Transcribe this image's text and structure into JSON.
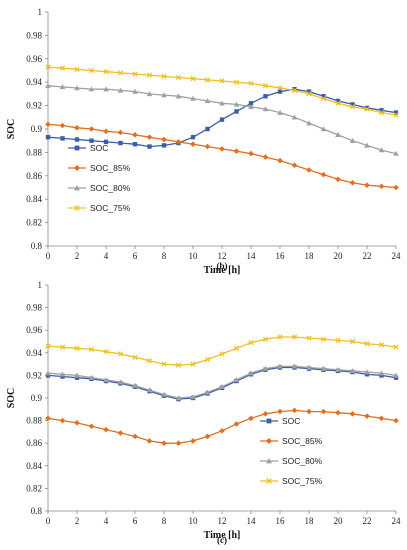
{
  "chart_data": [
    {
      "type": "line",
      "caption": "(b)",
      "xlabel": "Time [h]",
      "ylabel": "SOC",
      "xlim": [
        0,
        24
      ],
      "ylim": [
        0.8,
        1.0
      ],
      "xticks": [
        "0",
        "2",
        "4",
        "6",
        "8",
        "10",
        "12",
        "14",
        "16",
        "18",
        "20",
        "22",
        "24"
      ],
      "yticks": [
        "0.8",
        "0.82",
        "0.84",
        "0.86",
        "0.88",
        "0.9",
        "0.92",
        "0.94",
        "0.96",
        "0.98",
        "1"
      ],
      "grid": false,
      "legend": "left-bottom",
      "x": [
        0,
        1,
        2,
        3,
        4,
        5,
        6,
        7,
        8,
        9,
        10,
        11,
        12,
        13,
        14,
        15,
        16,
        17,
        18,
        19,
        20,
        21,
        22,
        23,
        24
      ],
      "series": [
        {
          "name": "SOC",
          "color": "#3a5fa8",
          "marker": "square",
          "values": [
            0.893,
            0.892,
            0.891,
            0.89,
            0.889,
            0.888,
            0.887,
            0.885,
            0.886,
            0.888,
            0.893,
            0.9,
            0.908,
            0.915,
            0.922,
            0.928,
            0.932,
            0.934,
            0.932,
            0.928,
            0.924,
            0.921,
            0.918,
            0.916,
            0.914
          ]
        },
        {
          "name": "SOC_85%",
          "color": "#e07020",
          "marker": "diamond",
          "values": [
            0.904,
            0.903,
            0.901,
            0.9,
            0.898,
            0.897,
            0.895,
            0.893,
            0.891,
            0.889,
            0.887,
            0.885,
            0.883,
            0.881,
            0.879,
            0.876,
            0.873,
            0.869,
            0.865,
            0.861,
            0.857,
            0.854,
            0.852,
            0.851,
            0.85
          ]
        },
        {
          "name": "SOC_80%",
          "color": "#a0a0a0",
          "marker": "triangle",
          "values": [
            0.937,
            0.936,
            0.935,
            0.934,
            0.934,
            0.933,
            0.932,
            0.93,
            0.929,
            0.928,
            0.926,
            0.924,
            0.922,
            0.921,
            0.919,
            0.917,
            0.914,
            0.91,
            0.905,
            0.9,
            0.895,
            0.89,
            0.886,
            0.882,
            0.879
          ]
        },
        {
          "name": "SOC_75%",
          "color": "#f0c020",
          "marker": "x",
          "values": [
            0.953,
            0.952,
            0.951,
            0.95,
            0.949,
            0.948,
            0.947,
            0.946,
            0.945,
            0.944,
            0.943,
            0.942,
            0.941,
            0.94,
            0.939,
            0.937,
            0.935,
            0.933,
            0.93,
            0.926,
            0.922,
            0.919,
            0.917,
            0.914,
            0.912
          ]
        }
      ]
    },
    {
      "type": "line",
      "caption": "(c)",
      "xlabel": "Time [h]",
      "ylabel": "SOC",
      "xlim": [
        0,
        24
      ],
      "ylim": [
        0.8,
        1.0
      ],
      "xticks": [
        "0",
        "2",
        "4",
        "6",
        "8",
        "10",
        "12",
        "14",
        "16",
        "18",
        "20",
        "22",
        "24"
      ],
      "yticks": [
        "0.8",
        "0.82",
        "0.84",
        "0.86",
        "0.88",
        "0.9",
        "0.92",
        "0.94",
        "0.96",
        "0.98",
        "1"
      ],
      "grid": false,
      "legend": "right-bottom",
      "x": [
        0,
        1,
        2,
        3,
        4,
        5,
        6,
        7,
        8,
        9,
        10,
        11,
        12,
        13,
        14,
        15,
        16,
        17,
        18,
        19,
        20,
        21,
        22,
        23,
        24
      ],
      "series": [
        {
          "name": "SOC",
          "color": "#3a5fa8",
          "marker": "square",
          "values": [
            0.92,
            0.919,
            0.918,
            0.917,
            0.915,
            0.913,
            0.91,
            0.906,
            0.902,
            0.899,
            0.9,
            0.904,
            0.909,
            0.915,
            0.921,
            0.925,
            0.927,
            0.927,
            0.926,
            0.925,
            0.924,
            0.923,
            0.921,
            0.92,
            0.918
          ]
        },
        {
          "name": "SOC_85%",
          "color": "#e07020",
          "marker": "diamond",
          "values": [
            0.882,
            0.88,
            0.878,
            0.875,
            0.872,
            0.869,
            0.866,
            0.862,
            0.86,
            0.86,
            0.862,
            0.866,
            0.871,
            0.877,
            0.882,
            0.886,
            0.888,
            0.889,
            0.888,
            0.888,
            0.887,
            0.886,
            0.884,
            0.882,
            0.88
          ]
        },
        {
          "name": "SOC_80%",
          "color": "#a0a0a0",
          "marker": "triangle",
          "values": [
            0.922,
            0.921,
            0.92,
            0.918,
            0.916,
            0.914,
            0.911,
            0.907,
            0.903,
            0.9,
            0.901,
            0.905,
            0.91,
            0.916,
            0.922,
            0.926,
            0.928,
            0.928,
            0.927,
            0.926,
            0.925,
            0.924,
            0.923,
            0.922,
            0.92
          ]
        },
        {
          "name": "SOC_75%",
          "color": "#f0c020",
          "marker": "x",
          "values": [
            0.946,
            0.945,
            0.944,
            0.943,
            0.941,
            0.939,
            0.936,
            0.933,
            0.93,
            0.929,
            0.93,
            0.934,
            0.939,
            0.944,
            0.949,
            0.952,
            0.954,
            0.954,
            0.953,
            0.952,
            0.951,
            0.95,
            0.948,
            0.947,
            0.945
          ]
        }
      ]
    }
  ]
}
